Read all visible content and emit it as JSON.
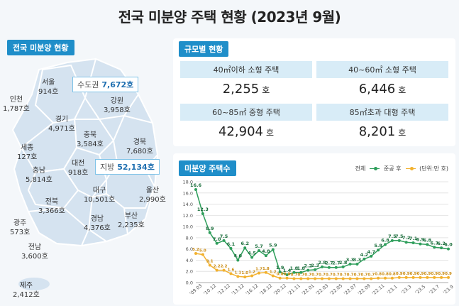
{
  "title": "전국 미분양 주택 현황  (2023년 9월)",
  "map_section": {
    "tag": "전국 미분양 현황",
    "regions": [
      {
        "name": "서울",
        "value": "914호"
      },
      {
        "name": "인천",
        "value": "1,787호"
      },
      {
        "name": "강원",
        "value": "3,958호"
      },
      {
        "name": "경기",
        "value": "4,971호"
      },
      {
        "name": "충북",
        "value": "3,584호"
      },
      {
        "name": "경북",
        "value": "7,680호"
      },
      {
        "name": "세종",
        "value": "127호"
      },
      {
        "name": "충남",
        "value": "5,814호"
      },
      {
        "name": "대전",
        "value": "918호"
      },
      {
        "name": "대구",
        "value": "10,501호"
      },
      {
        "name": "울산",
        "value": "2,990호"
      },
      {
        "name": "전북",
        "value": "3,366호"
      },
      {
        "name": "경남",
        "value": "4,376호"
      },
      {
        "name": "부산",
        "value": "2,235호"
      },
      {
        "name": "광주",
        "value": "573호"
      },
      {
        "name": "전남",
        "value": "3,600호"
      },
      {
        "name": "제주",
        "value": "2,412호"
      }
    ],
    "capital": {
      "label": "수도권",
      "value": "7,672호"
    },
    "provincial": {
      "label": "지방",
      "value": "52,134호"
    }
  },
  "size_section": {
    "tag": "규모별 현황",
    "cells": [
      {
        "header": "40㎡이하 소형 주택",
        "value": "2,255",
        "unit": "호"
      },
      {
        "header": "40~60㎡ 소형 주택",
        "value": "6,446",
        "unit": "호"
      },
      {
        "header": "60~85㎡ 중형 주택",
        "value": "42,904",
        "unit": "호"
      },
      {
        "header": "85㎡초과 대형 주택",
        "value": "8,201",
        "unit": "호"
      }
    ]
  },
  "chart_section": {
    "tag": "미분양 주택수",
    "legend": {
      "total": "전체",
      "completed": "준공 후",
      "unit": "(단위:만 호)"
    },
    "colors": {
      "total": "#2e9e5b",
      "completed": "#f2b12e"
    }
  },
  "chart_data": {
    "type": "line",
    "ylim": [
      0,
      18
    ],
    "yticks": [
      "0.0",
      "2.0",
      "4.0",
      "6.0",
      "8.0",
      "10.0",
      "12.0",
      "14.0",
      "16.0",
      "18.0"
    ],
    "xticks": [
      "'09.03",
      "'10.12",
      "'12.12",
      "'13.12",
      "'16.12",
      "'18.12",
      "'20.12",
      "'21.11",
      "'22.01",
      "'22.03",
      "'22.05",
      "'22.07",
      "'22.09",
      "'22.11",
      "'23.1",
      "'23.3",
      "'23.5",
      "'23.7",
      "'23.9"
    ],
    "series": [
      {
        "name": "전체",
        "labels": [
          "16.6",
          "12.3",
          "8.9",
          "7.0",
          "7.5",
          "6.1",
          "4.0",
          "6.2",
          "4.5",
          "5.7",
          "4.8",
          "5.9",
          "1.9",
          "1.4",
          "1.8",
          "1.8",
          "2.2",
          "2.3",
          "2.8",
          "2.7",
          "2.7",
          "2.8",
          "3.3",
          "3.3",
          "4.2",
          "4.7",
          "5.8",
          "6.8",
          "7.5",
          "7.5",
          "7.2",
          "7.1",
          "6.9",
          "6.8",
          "6.3",
          "6.2",
          "6.0"
        ],
        "values": [
          16.6,
          12.3,
          8.9,
          7.0,
          7.5,
          6.1,
          4.0,
          6.2,
          4.5,
          5.7,
          4.8,
          5.9,
          1.9,
          1.4,
          1.8,
          1.8,
          2.2,
          2.3,
          2.8,
          2.7,
          2.7,
          2.8,
          3.3,
          3.3,
          4.2,
          4.7,
          5.8,
          6.8,
          7.5,
          7.5,
          7.2,
          7.1,
          6.9,
          6.8,
          6.3,
          6.2,
          6.0
        ]
      },
      {
        "name": "준공 후",
        "labels": [
          "5.2",
          "5.0",
          "3.1",
          "2.2",
          "2.2",
          "1.6",
          "1.1",
          "1.0",
          "1.2",
          "1.7",
          "1.8",
          "1.2",
          "0.8",
          "0.8",
          "0.7",
          "0.7",
          "0.7",
          "0.7",
          "0.7",
          "0.7",
          "0.7",
          "0.7",
          "0.7",
          "0.7",
          "0.7",
          "0.7",
          "0.8",
          "0.8",
          "0.8",
          "0.9",
          "0.9",
          "0.9",
          "0.9",
          "0.9",
          "0.9",
          "0.9",
          "0.9"
        ],
        "values": [
          5.2,
          5.0,
          3.1,
          2.2,
          2.2,
          1.6,
          1.1,
          1.0,
          1.2,
          1.7,
          1.8,
          1.2,
          0.8,
          0.8,
          0.7,
          0.7,
          0.7,
          0.7,
          0.7,
          0.7,
          0.7,
          0.7,
          0.7,
          0.7,
          0.7,
          0.7,
          0.8,
          0.8,
          0.8,
          0.9,
          0.9,
          0.9,
          0.9,
          0.9,
          0.9,
          0.9,
          0.9
        ]
      }
    ],
    "grid": true,
    "legend_position": "top-right"
  }
}
